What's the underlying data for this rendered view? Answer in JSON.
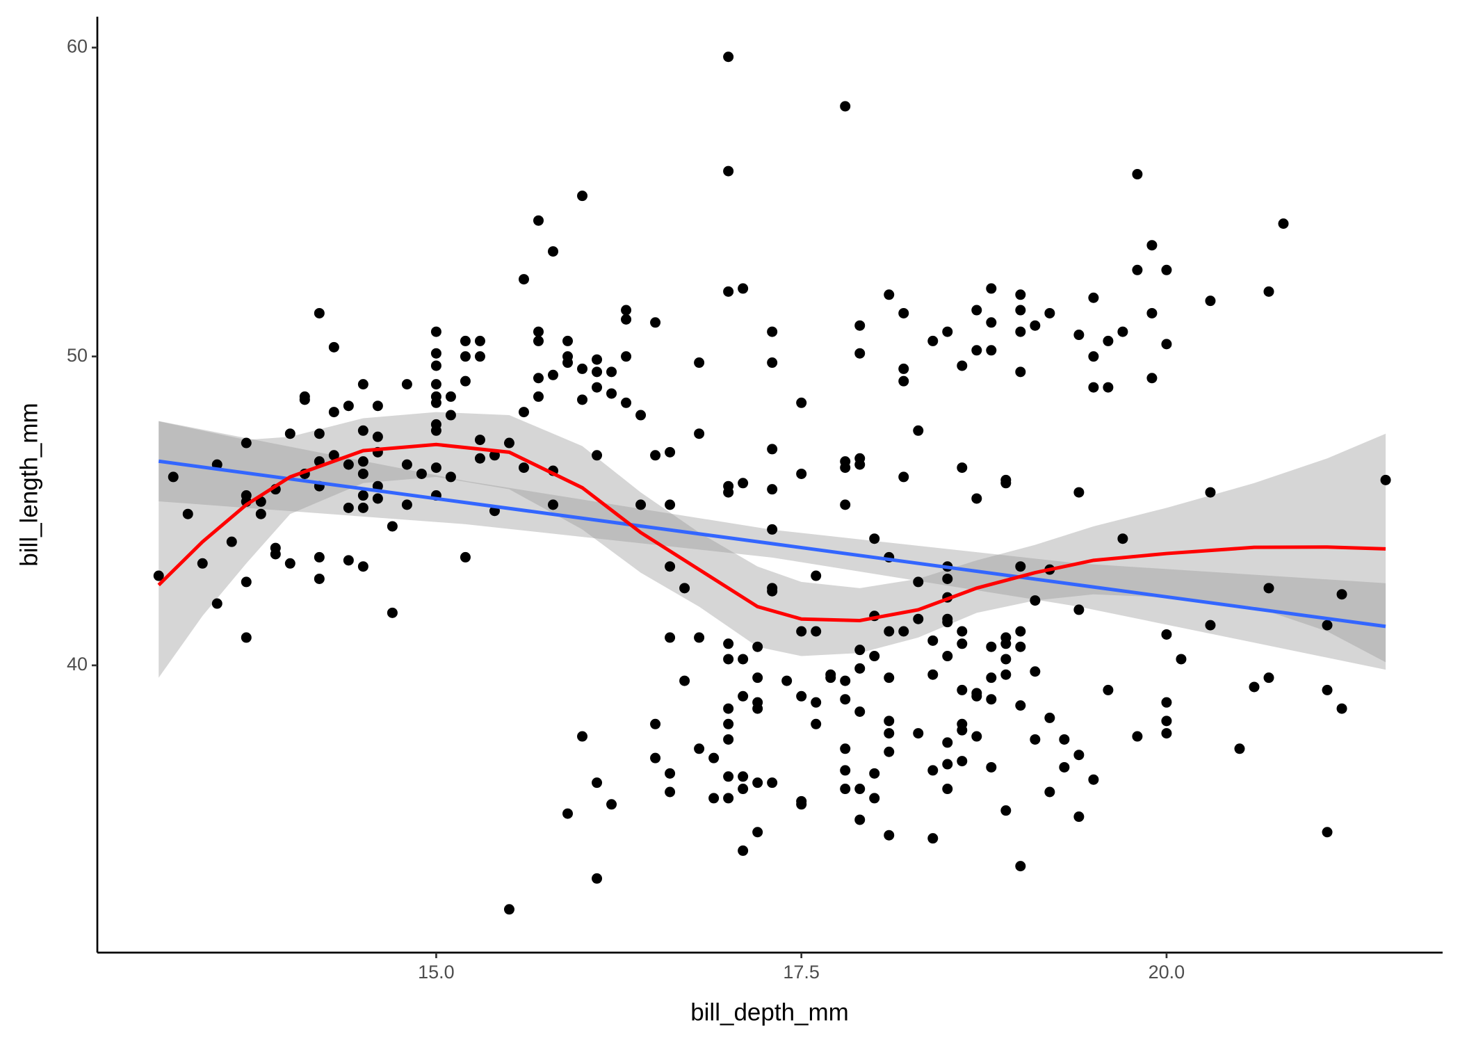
{
  "chart_data": {
    "type": "scatter",
    "x_label": "bill_depth_mm",
    "y_label": "bill_length_mm",
    "xlim": [
      12.68,
      21.89
    ],
    "ylim": [
      30.7,
      61.0
    ],
    "xticks": [
      {
        "value": 15,
        "label": "15.0"
      },
      17.5,
      {
        "value": 20,
        "label": "20.0"
      }
    ],
    "yticks": [
      40,
      50,
      60
    ],
    "color": "#000000",
    "x": [
      13.1,
      13.2,
      13.3,
      13.4,
      13.5,
      13.5,
      13.6,
      13.7,
      13.7,
      13.7,
      13.7,
      13.7,
      13.8,
      13.8,
      13.9,
      13.9,
      13.9,
      14.0,
      14.0,
      14.1,
      14.1,
      14.1,
      14.2,
      14.2,
      14.2,
      14.2,
      14.2,
      14.2,
      14.3,
      14.3,
      14.3,
      14.4,
      14.4,
      14.4,
      14.4,
      14.5,
      14.5,
      14.5,
      14.5,
      14.5,
      14.5,
      14.5,
      14.6,
      14.6,
      14.6,
      14.6,
      14.6,
      14.7,
      14.7,
      14.8,
      14.8,
      14.8,
      14.9,
      15.0,
      15.0,
      15.0,
      15.0,
      15.0,
      15.0,
      15.0,
      15.0,
      15.0,
      15.0,
      15.1,
      15.1,
      15.1,
      15.2,
      15.2,
      15.2,
      15.2,
      15.3,
      15.3,
      15.3,
      15.3,
      15.4,
      15.4,
      15.5,
      15.5,
      15.6,
      15.6,
      15.6,
      15.7,
      15.7,
      15.7,
      15.7,
      15.7,
      15.8,
      15.8,
      15.8,
      15.8,
      15.9,
      15.9,
      15.9,
      15.9,
      16.0,
      16.0,
      16.0,
      16.0,
      16.1,
      16.1,
      16.1,
      16.1,
      16.1,
      16.1,
      16.2,
      16.2,
      16.2,
      16.3,
      16.3,
      16.3,
      16.3,
      16.4,
      16.4,
      16.5,
      16.5,
      16.5,
      16.5,
      16.6,
      16.6,
      16.6,
      16.6,
      16.6,
      16.6,
      16.7,
      16.7,
      16.8,
      16.8,
      16.8,
      16.8,
      16.9,
      16.9,
      17.0,
      17.0,
      17.0,
      17.0,
      17.0,
      17.0,
      17.0,
      17.0,
      17.0,
      17.0,
      17.0,
      17.0,
      17.1,
      17.1,
      17.1,
      17.1,
      17.1,
      17.1,
      17.1,
      17.2,
      17.2,
      17.2,
      17.2,
      17.2,
      17.2,
      17.3,
      17.3,
      17.3,
      17.3,
      17.3,
      17.3,
      17.3,
      17.3,
      17.4,
      17.5,
      17.5,
      17.5,
      17.5,
      17.5,
      17.5,
      17.6,
      17.6,
      17.6,
      17.6,
      17.7,
      17.7,
      17.8,
      17.8,
      17.8,
      17.8,
      17.8,
      17.8,
      17.8,
      17.8,
      17.8,
      17.9,
      17.9,
      17.9,
      17.9,
      17.9,
      17.9,
      17.9,
      17.9,
      17.9,
      18.0,
      18.0,
      18.0,
      18.0,
      18.0,
      18.1,
      18.1,
      18.1,
      18.1,
      18.1,
      18.1,
      18.1,
      18.1,
      18.2,
      18.2,
      18.2,
      18.2,
      18.2,
      18.3,
      18.3,
      18.3,
      18.3,
      18.4,
      18.4,
      18.4,
      18.4,
      18.4,
      18.5,
      18.5,
      18.5,
      18.5,
      18.5,
      18.5,
      18.5,
      18.5,
      18.5,
      18.5,
      18.6,
      18.6,
      18.6,
      18.6,
      18.6,
      18.6,
      18.6,
      18.6,
      18.7,
      18.7,
      18.7,
      18.7,
      18.7,
      18.7,
      18.8,
      18.8,
      18.8,
      18.8,
      18.8,
      18.8,
      18.8,
      18.9,
      18.9,
      18.9,
      18.9,
      18.9,
      18.9,
      18.9,
      19.0,
      19.0,
      19.0,
      19.0,
      19.0,
      19.0,
      19.0,
      19.0,
      19.0,
      19.1,
      19.1,
      19.1,
      19.1,
      19.2,
      19.2,
      19.2,
      19.2,
      19.3,
      19.3,
      19.4,
      19.4,
      19.4,
      19.4,
      19.4,
      19.5,
      19.5,
      19.5,
      19.5,
      19.6,
      19.6,
      19.6,
      19.7,
      19.7,
      19.8,
      19.8,
      19.8,
      19.9,
      19.9,
      19.9,
      20.0,
      20.0,
      20.0,
      20.0,
      20.0,
      20.0,
      20.1,
      20.3,
      20.3,
      20.3,
      20.5,
      20.6,
      20.7,
      20.7,
      20.7,
      20.8,
      21.1,
      21.1,
      21.1,
      21.2,
      21.2,
      21.5
    ],
    "values": [
      42.9,
      46.1,
      44.9,
      43.3,
      46.5,
      42.0,
      44.0,
      47.2,
      45.5,
      45.3,
      42.7,
      40.9,
      45.3,
      44.9,
      45.7,
      43.8,
      43.6,
      47.5,
      43.3,
      46.2,
      48.6,
      48.7,
      51.4,
      47.5,
      46.6,
      45.8,
      43.5,
      42.8,
      50.3,
      48.2,
      46.8,
      48.4,
      46.5,
      45.1,
      43.4,
      49.1,
      47.6,
      46.6,
      46.2,
      45.5,
      45.1,
      43.2,
      48.4,
      47.4,
      46.9,
      45.8,
      45.4,
      44.5,
      41.7,
      49.1,
      46.5,
      45.2,
      46.2,
      50.8,
      50.1,
      49.7,
      49.1,
      48.7,
      48.5,
      47.8,
      47.6,
      46.4,
      45.5,
      48.7,
      48.1,
      46.1,
      50.5,
      50.0,
      49.2,
      43.5,
      50.5,
      50.0,
      47.3,
      46.7,
      46.8,
      45.0,
      47.2,
      32.1,
      52.5,
      48.2,
      46.4,
      54.4,
      50.8,
      50.5,
      49.3,
      48.7,
      53.4,
      49.4,
      46.3,
      45.2,
      50.5,
      50.0,
      49.8,
      35.2,
      55.2,
      49.6,
      48.6,
      37.7,
      49.9,
      49.5,
      49.0,
      46.8,
      36.2,
      33.1,
      49.5,
      48.8,
      35.5,
      51.5,
      51.2,
      50.0,
      48.5,
      48.1,
      45.2,
      51.1,
      46.8,
      38.1,
      37.0,
      46.9,
      45.2,
      43.2,
      40.9,
      36.5,
      35.9,
      42.5,
      39.5,
      49.8,
      47.5,
      40.9,
      37.3,
      37.0,
      35.7,
      59.7,
      56.0,
      52.1,
      45.8,
      45.6,
      40.7,
      40.2,
      38.6,
      38.1,
      37.6,
      36.4,
      35.7,
      52.2,
      45.9,
      40.2,
      39.0,
      36.4,
      36.0,
      34.0,
      40.6,
      39.6,
      38.8,
      38.6,
      36.2,
      34.6,
      50.8,
      49.8,
      47.0,
      45.7,
      44.4,
      42.5,
      42.4,
      36.2,
      39.5,
      48.5,
      46.2,
      41.1,
      39.0,
      35.6,
      35.5,
      42.9,
      41.1,
      38.8,
      38.1,
      39.7,
      39.6,
      58.1,
      46.6,
      46.4,
      45.2,
      39.5,
      38.9,
      37.3,
      36.6,
      36.0,
      51.0,
      50.1,
      46.7,
      46.5,
      40.5,
      39.9,
      38.5,
      36.0,
      35.0,
      44.1,
      41.6,
      40.3,
      36.5,
      35.7,
      52.0,
      43.5,
      41.1,
      39.6,
      38.2,
      37.8,
      37.2,
      34.5,
      51.4,
      49.6,
      49.2,
      46.1,
      41.1,
      47.6,
      42.7,
      41.5,
      37.8,
      50.5,
      40.8,
      39.7,
      36.6,
      34.4,
      50.8,
      43.2,
      42.8,
      42.2,
      41.5,
      41.4,
      40.3,
      37.5,
      36.8,
      36.0,
      49.7,
      46.4,
      41.1,
      40.7,
      39.2,
      38.1,
      37.9,
      36.9,
      51.5,
      50.2,
      45.4,
      39.1,
      39.0,
      37.7,
      52.2,
      51.1,
      50.2,
      40.6,
      39.6,
      38.9,
      36.7,
      46.0,
      45.9,
      40.9,
      40.7,
      40.2,
      39.7,
      35.3,
      52.0,
      51.5,
      50.8,
      49.5,
      43.2,
      41.1,
      40.6,
      38.7,
      33.5,
      51.0,
      42.1,
      39.8,
      37.6,
      51.4,
      43.1,
      38.3,
      35.9,
      37.6,
      36.7,
      50.7,
      45.6,
      41.8,
      37.1,
      35.1,
      51.9,
      50.0,
      49.0,
      36.3,
      50.5,
      49.0,
      39.2,
      50.8,
      44.1,
      55.9,
      52.8,
      37.7,
      53.6,
      51.4,
      49.3,
      52.8,
      50.4,
      41.0,
      38.8,
      38.2,
      37.8,
      40.2,
      51.8,
      45.6,
      41.3,
      37.3,
      39.3,
      52.1,
      42.5,
      39.6,
      54.3,
      41.3,
      39.2,
      34.6,
      42.3,
      38.6,
      46.0
    ],
    "band_color": "#999999",
    "fits": [
      {
        "color": "#3366FF",
        "x": [
          13.1,
          15.2,
          17.3,
          19.4,
          21.5
        ],
        "values": [
          46.61,
          45.27,
          43.94,
          42.6,
          41.26
        ],
        "lower": [
          45.31,
          44.57,
          43.49,
          41.9,
          39.86
        ],
        "upper": [
          47.91,
          45.97,
          44.39,
          43.3,
          42.66
        ]
      },
      {
        "color": "#FF0000",
        "x": [
          13.1,
          13.4,
          13.7,
          14.0,
          14.5,
          15.0,
          15.5,
          16.0,
          16.4,
          16.8,
          17.2,
          17.5,
          17.9,
          18.3,
          18.7,
          19.1,
          19.5,
          20.0,
          20.6,
          21.1,
          21.5
        ],
        "values": [
          42.6,
          44.0,
          45.2,
          46.1,
          46.95,
          47.15,
          46.9,
          45.75,
          44.3,
          43.1,
          41.9,
          41.5,
          41.45,
          41.8,
          42.5,
          43.0,
          43.4,
          43.62,
          43.82,
          43.83,
          43.77
        ],
        "lower": [
          39.6,
          41.6,
          43.3,
          44.9,
          45.9,
          46.1,
          45.7,
          44.4,
          43.0,
          41.9,
          40.6,
          40.3,
          40.4,
          40.9,
          41.7,
          42.1,
          42.3,
          42.2,
          41.9,
          41.1,
          40.1
        ],
        "upper": [
          47.9,
          47.6,
          47.3,
          47.4,
          48.0,
          48.2,
          48.1,
          47.1,
          45.6,
          44.3,
          43.2,
          42.7,
          42.5,
          42.8,
          43.4,
          43.9,
          44.5,
          45.1,
          45.9,
          46.7,
          47.5
        ]
      }
    ]
  }
}
